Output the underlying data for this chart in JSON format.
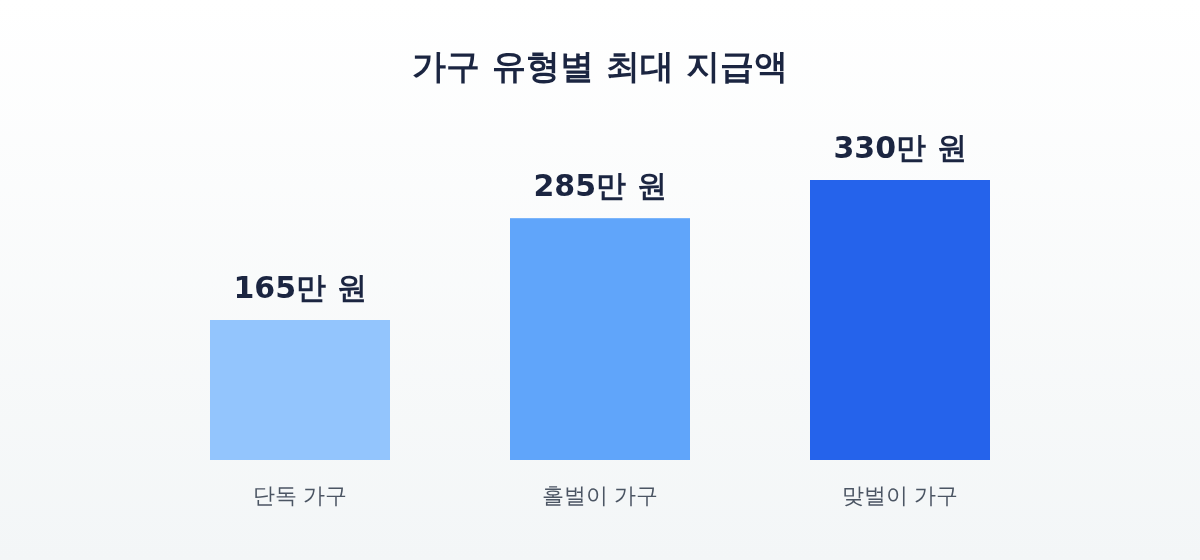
{
  "chart_data": {
    "type": "bar",
    "title": "가구 유형별 최대 지급액",
    "categories": [
      "단독 가구",
      "홀벌이 가구",
      "맞벌이 가구"
    ],
    "values": [
      165,
      285,
      330
    ],
    "colors": [
      "#93c5fd",
      "#60a5fa",
      "#2563eb"
    ],
    "value_labels": [
      "165만 원",
      "285만 원",
      "330만 원"
    ]
  }
}
